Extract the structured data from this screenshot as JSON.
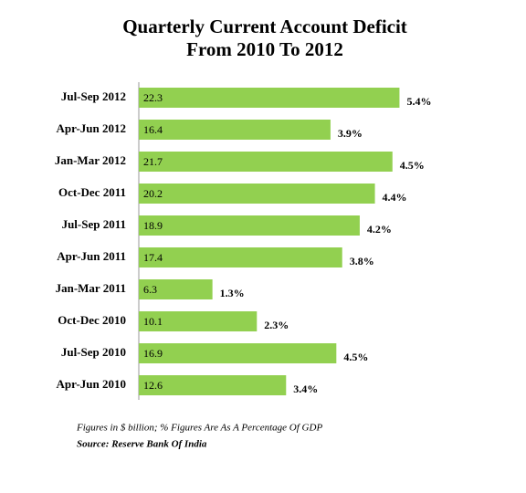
{
  "chart_data": {
    "type": "bar",
    "orientation": "horizontal",
    "title": "Quarterly Current Account Deficit",
    "subtitle": "From 2010 To 2012",
    "categories": [
      "Jul-Sep 2012",
      "Apr-Jun 2012",
      "Jan-Mar 2012",
      "Oct-Dec 2011",
      "Jul-Sep 2011",
      "Apr-Jun 2011",
      "Jan-Mar 2011",
      "Oct-Dec 2010",
      "Jul-Sep 2010",
      "Apr-Jun 2010"
    ],
    "values": [
      22.3,
      16.4,
      21.7,
      20.2,
      18.9,
      17.4,
      6.3,
      10.1,
      16.9,
      12.6
    ],
    "color": "#92d050",
    "gdp_share": {
      "values": [
        5.4,
        3.9,
        4.5,
        4.4,
        4.2,
        3.8,
        1.3,
        2.3,
        4.5,
        3.4
      ],
      "value_labels": [
        "5.4%",
        "3.9%",
        "4.5%",
        "4.4%",
        "4.2%",
        "3.8%",
        "1.3%",
        "2.3%",
        "4.5%",
        "3.4%"
      ]
    },
    "note": "Figures in $ billion; % Figures Are As A Percentage Of GDP",
    "source": "Source: Reserve Bank Of India"
  }
}
